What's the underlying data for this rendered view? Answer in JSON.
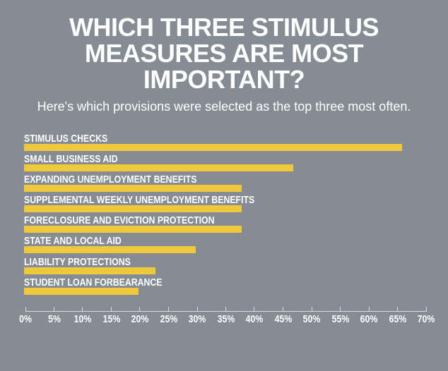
{
  "page": {
    "background_color": "#868C94",
    "text_color": "#FFFFFF"
  },
  "chart_data": {
    "type": "bar",
    "orientation": "horizontal",
    "title": "WHICH THREE STIMULUS MEASURES ARE MOST IMPORTANT?",
    "subtitle": "Here's which provisions were selected as the top three most often.",
    "categories": [
      "STIMULUS CHECKS",
      "SMALL BUSINESS AID",
      "EXPANDING UNEMPLOYMENT BENEFITS",
      "SUPPLEMENTAL WEEKLY UNEMPLOYMENT BENEFITS",
      "FORECLOSURE AND EVICTION PROTECTION",
      "STATE AND LOCAL AID",
      "LIABILITY PROTECTIONS",
      "STUDENT LOAN FORBEARANCE"
    ],
    "values": [
      66,
      47,
      38,
      38,
      38,
      30,
      23,
      20
    ],
    "unit": "%",
    "xlim": [
      0,
      70
    ],
    "xtick_step": 5,
    "xtick_labels": [
      "0%",
      "5%",
      "10%",
      "15%",
      "20%",
      "25%",
      "30%",
      "35%",
      "40%",
      "45%",
      "50%",
      "55%",
      "60%",
      "65%",
      "70%"
    ],
    "bar_color": "#EFC83C",
    "label_color": "#FFFFFF",
    "axis_color": "#D9DCDF",
    "grid": false,
    "legend": null
  }
}
